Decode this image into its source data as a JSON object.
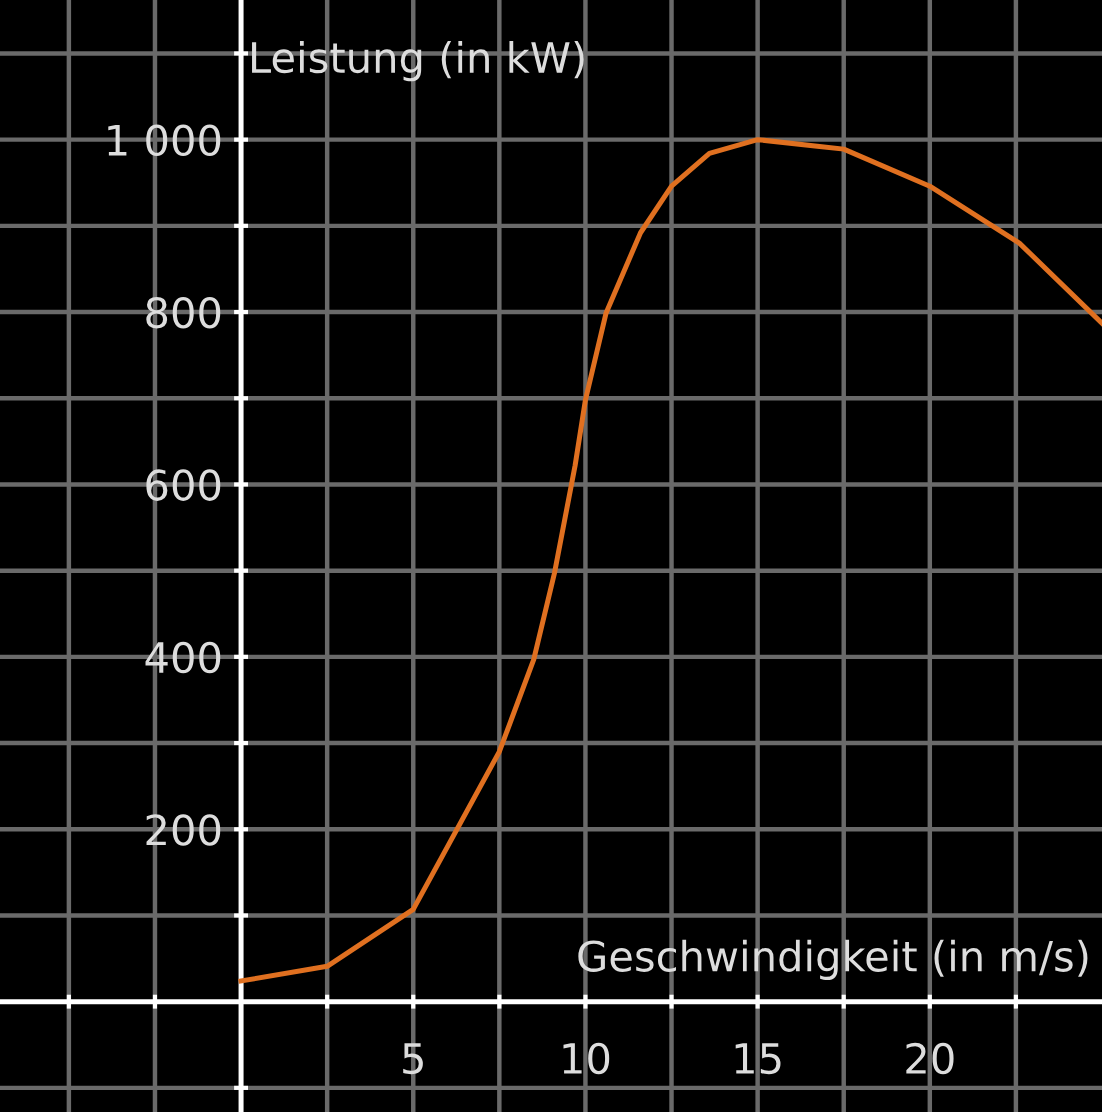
{
  "chart_data": {
    "type": "line",
    "xlabel": "Geschwindigkeit (in m/s)",
    "ylabel": "Leistung (in kW)",
    "x": [
      0,
      2.5,
      5,
      7.5,
      8.5,
      9.1,
      9.7,
      10,
      10.6,
      11.6,
      12.5,
      13.6,
      15,
      16.8,
      17.5,
      20,
      22.6,
      25
    ],
    "series": [
      {
        "color": "#e07020",
        "values": [
          24,
          41,
          107,
          290,
          397,
          497,
          622,
          698,
          799,
          892,
          946,
          984,
          1000,
          992,
          989,
          946,
          880,
          787
        ]
      }
    ],
    "xlim": [
      -7,
      25
    ],
    "ylim": [
      -128,
      1162
    ],
    "xticks": [
      {
        "value": -5,
        "label": null
      },
      {
        "value": -2.5,
        "label": null
      },
      {
        "value": 2.5,
        "label": null
      },
      5,
      {
        "value": 7.5,
        "label": null
      },
      10,
      {
        "value": 12.5,
        "label": null
      },
      15,
      {
        "value": 17.5,
        "label": null
      },
      20,
      {
        "value": 22.5,
        "label": null
      }
    ],
    "yticks": [
      {
        "value": -100,
        "label": null
      },
      {
        "value": 100,
        "label": null
      },
      200,
      {
        "value": 300,
        "label": null
      },
      400,
      {
        "value": 500,
        "label": null
      },
      600,
      {
        "value": 700,
        "label": null
      },
      800,
      {
        "value": 900,
        "label": null
      },
      {
        "value": 1000,
        "label": "1 000"
      },
      {
        "value": 1100,
        "label": null
      }
    ],
    "grid": true,
    "legend": false,
    "marker": "none",
    "line_style": "solid"
  }
}
